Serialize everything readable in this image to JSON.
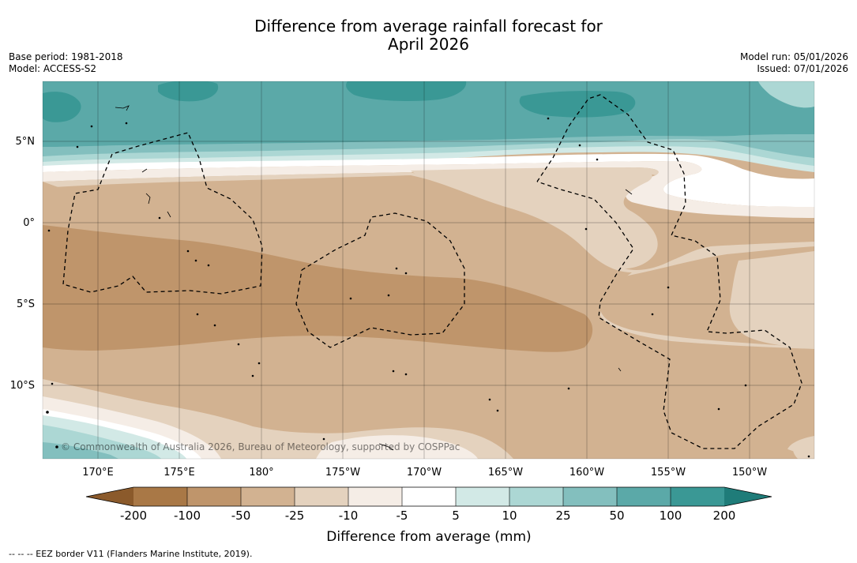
{
  "title": {
    "line1": "Difference from average rainfall forecast for",
    "line2": "April 2026"
  },
  "meta": {
    "base_period": "Base period: 1981-2018",
    "model": "Model: ACCESS-S2",
    "model_run": "Model run: 05/01/2026",
    "issued": "Issued: 07/01/2026"
  },
  "map": {
    "lat_labels": [
      "5°N",
      "0°",
      "5°S",
      "10°S"
    ],
    "lon_labels": [
      "170°E",
      "175°E",
      "180°",
      "175°W",
      "170°W",
      "165°W",
      "160°W",
      "155°W",
      "150°W"
    ],
    "copyright": "© Commonwealth of Australia 2026, Bureau of Meteorology, supported by COSPPac"
  },
  "legend": {
    "title": "Difference from average (mm)",
    "tick_labels": [
      "-200",
      "-100",
      "-50",
      "-25",
      "-10",
      "-5",
      "5",
      "10",
      "25",
      "50",
      "100",
      "200"
    ],
    "colors": {
      "extend_low": "#8b5a2b",
      "bin_1": "#a97846",
      "bin_2": "#bf956b",
      "bin_3": "#d2b291",
      "bin_4": "#e4d2be",
      "bin_5": "#f5ede6",
      "bin_6": "#ffffff",
      "bin_7": "#d2e9e6",
      "bin_8": "#acd7d4",
      "bin_9": "#83bfbe",
      "bin_10": "#5ba9a8",
      "bin_11": "#3a9895",
      "extend_high": "#1f7c79"
    }
  },
  "footer": {
    "eez_note": "--  --  -- EEZ border V11 (Flanders Marine Institute, 2019)."
  }
}
